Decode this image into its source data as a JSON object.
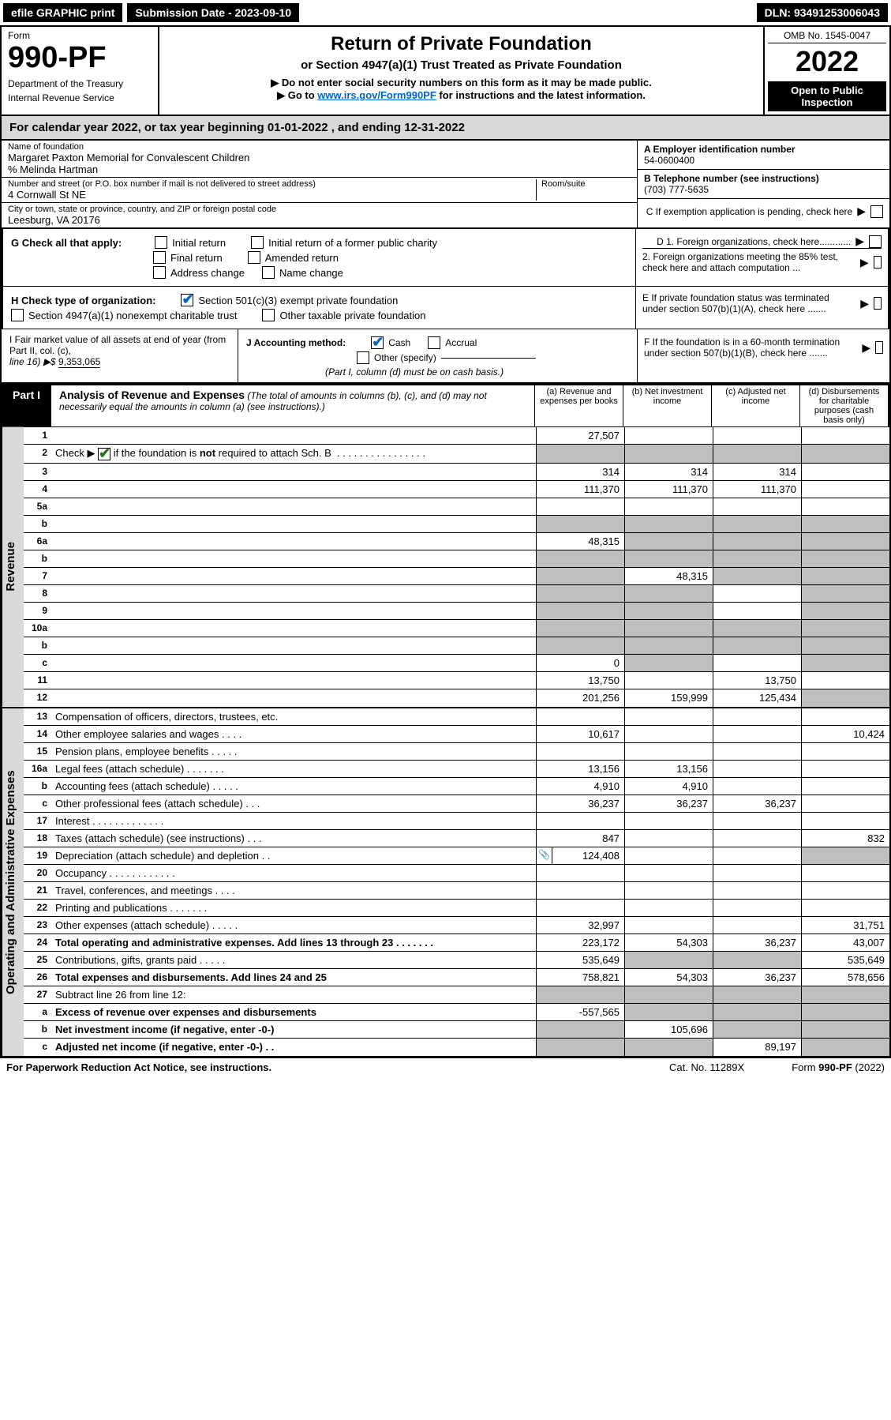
{
  "topbar": {
    "efile": "efile GRAPHIC print",
    "submission_label": "Submission Date - 2023-09-10",
    "dln": "DLN: 93491253006043"
  },
  "header": {
    "form_word": "Form",
    "form_num": "990-PF",
    "dept1": "Department of the Treasury",
    "dept2": "Internal Revenue Service",
    "title": "Return of Private Foundation",
    "subtitle": "or Section 4947(a)(1) Trust Treated as Private Foundation",
    "note1": "▶ Do not enter social security numbers on this form as it may be made public.",
    "note2_pre": "▶ Go to ",
    "note2_link": "www.irs.gov/Form990PF",
    "note2_post": " for instructions and the latest information.",
    "omb": "OMB No. 1545-0047",
    "year": "2022",
    "open": "Open to Public Inspection"
  },
  "cal_year": {
    "pre": "For calendar year 2022, or tax year beginning ",
    "begin": "01-01-2022",
    "mid": " , and ending ",
    "end": "12-31-2022"
  },
  "entity": {
    "name_label": "Name of foundation",
    "name": "Margaret Paxton Memorial for Convalescent Children",
    "care_of": "% Melinda Hartman",
    "addr_label": "Number and street (or P.O. box number if mail is not delivered to street address)",
    "room_label": "Room/suite",
    "addr": "4 Cornwall St NE",
    "city_label": "City or town, state or province, country, and ZIP or foreign postal code",
    "city": "Leesburg, VA  20176",
    "a_label": "A Employer identification number",
    "a_val": "54-0600400",
    "b_label": "B Telephone number (see instructions)",
    "b_val": "(703) 777-5635",
    "c_label": "C If exemption application is pending, check here"
  },
  "g": {
    "label": "G Check all that apply:",
    "initial": "Initial return",
    "initial_former": "Initial return of a former public charity",
    "final": "Final return",
    "amended": "Amended return",
    "addr_change": "Address change",
    "name_change": "Name change"
  },
  "h": {
    "label": "H Check type of organization:",
    "s501": "Section 501(c)(3) exempt private foundation",
    "s4947": "Section 4947(a)(1) nonexempt charitable trust",
    "other_tax": "Other taxable private foundation"
  },
  "d": {
    "d1": "D 1. Foreign organizations, check here............",
    "d2": "2. Foreign organizations meeting the 85% test, check here and attach computation ...",
    "e": "E  If private foundation status was terminated under section 507(b)(1)(A), check here .......",
    "f": "F  If the foundation is in a 60-month termination under section 507(b)(1)(B), check here ......."
  },
  "i": {
    "label": "I Fair market value of all assets at end of year (from Part II, col. (c),",
    "line16": "line 16) ▶$ ",
    "val": "9,353,065"
  },
  "j": {
    "label": "J Accounting method:",
    "cash": "Cash",
    "accrual": "Accrual",
    "other": "Other (specify)",
    "note": "(Part I, column (d) must be on cash basis.)"
  },
  "part1": {
    "tab": "Part I",
    "title": "Analysis of Revenue and Expenses",
    "title_note": " (The total of amounts in columns (b), (c), and (d) may not necessarily equal the amounts in column (a) (see instructions).)",
    "col_a": "(a) Revenue and expenses per books",
    "col_b": "(b) Net investment income",
    "col_c": "(c) Adjusted net income",
    "col_d": "(d) Disbursements for charitable purposes (cash basis only)"
  },
  "side_labels": {
    "revenue": "Revenue",
    "expenses": "Operating and Administrative Expenses"
  },
  "rows": [
    {
      "n": "1",
      "d": "",
      "a": "27,507",
      "b": "",
      "c": "",
      "bg": false,
      "cg": false,
      "dg": false
    },
    {
      "n": "2",
      "d": "",
      "a": "",
      "b": "",
      "c": "",
      "ag": true,
      "bg": true,
      "cg": true,
      "dg": true,
      "chk": true
    },
    {
      "n": "3",
      "d": "",
      "a": "314",
      "b": "314",
      "c": "314"
    },
    {
      "n": "4",
      "d": "",
      "a": "111,370",
      "b": "111,370",
      "c": "111,370"
    },
    {
      "n": "5a",
      "d": "",
      "a": "",
      "b": "",
      "c": ""
    },
    {
      "n": "b",
      "d": "",
      "a": "",
      "b": "",
      "c": "",
      "ag": true,
      "bg": true,
      "cg": true,
      "dg": true,
      "line": true
    },
    {
      "n": "6a",
      "d": "",
      "a": "48,315",
      "b": "",
      "c": "",
      "bg": true,
      "cg": true,
      "dg": true
    },
    {
      "n": "b",
      "d": "",
      "a": "",
      "b": "",
      "c": "",
      "ag": true,
      "bg": true,
      "cg": true,
      "dg": true
    },
    {
      "n": "7",
      "d": "",
      "a": "",
      "b": "48,315",
      "c": "",
      "ag": true,
      "cg": true,
      "dg": true
    },
    {
      "n": "8",
      "d": "",
      "a": "",
      "b": "",
      "c": "",
      "ag": true,
      "bg": true,
      "dg": true
    },
    {
      "n": "9",
      "d": "",
      "a": "",
      "b": "",
      "c": "",
      "ag": true,
      "bg": true,
      "dg": true
    },
    {
      "n": "10a",
      "d": "",
      "a": "",
      "b": "",
      "c": "",
      "ag": true,
      "bg": true,
      "cg": true,
      "dg": true,
      "line": true
    },
    {
      "n": "b",
      "d": "",
      "a": "",
      "b": "",
      "c": "",
      "ag": true,
      "bg": true,
      "cg": true,
      "dg": true,
      "line": true
    },
    {
      "n": "c",
      "d": "",
      "a": "0",
      "b": "",
      "c": "",
      "bg": true,
      "dg": true
    },
    {
      "n": "11",
      "d": "",
      "a": "13,750",
      "b": "",
      "c": "13,750"
    },
    {
      "n": "12",
      "d": "",
      "a": "201,256",
      "b": "159,999",
      "c": "125,434",
      "bold": true,
      "dg": true
    }
  ],
  "exp_rows": [
    {
      "n": "13",
      "d": "Compensation of officers, directors, trustees, etc.",
      "a": "",
      "b": "",
      "c": "",
      "dv": ""
    },
    {
      "n": "14",
      "d": "Other employee salaries and wages  . . . .",
      "a": "10,617",
      "b": "",
      "c": "",
      "dv": "10,424"
    },
    {
      "n": "15",
      "d": "Pension plans, employee benefits  . . . . .",
      "a": "",
      "b": "",
      "c": "",
      "dv": ""
    },
    {
      "n": "16a",
      "d": "Legal fees (attach schedule)  . . . . . . .",
      "a": "13,156",
      "b": "13,156",
      "c": "",
      "dv": ""
    },
    {
      "n": "b",
      "d": "Accounting fees (attach schedule)  . . . . .",
      "a": "4,910",
      "b": "4,910",
      "c": "",
      "dv": ""
    },
    {
      "n": "c",
      "d": "Other professional fees (attach schedule)  . . .",
      "a": "36,237",
      "b": "36,237",
      "c": "36,237",
      "dv": ""
    },
    {
      "n": "17",
      "d": "Interest  . . . . . . . . . . . . .",
      "a": "",
      "b": "",
      "c": "",
      "dv": ""
    },
    {
      "n": "18",
      "d": "Taxes (attach schedule) (see instructions)  . . .",
      "a": "847",
      "b": "",
      "c": "",
      "dv": "832"
    },
    {
      "n": "19",
      "d": "Depreciation (attach schedule) and depletion  . .",
      "a": "124,408",
      "b": "",
      "c": "",
      "dv": "",
      "icon": true,
      "dg": true
    },
    {
      "n": "20",
      "d": "Occupancy  . . . . . . . . . . . .",
      "a": "",
      "b": "",
      "c": "",
      "dv": ""
    },
    {
      "n": "21",
      "d": "Travel, conferences, and meetings  . . . .",
      "a": "",
      "b": "",
      "c": "",
      "dv": ""
    },
    {
      "n": "22",
      "d": "Printing and publications  . . . . . . .",
      "a": "",
      "b": "",
      "c": "",
      "dv": ""
    },
    {
      "n": "23",
      "d": "Other expenses (attach schedule)  . . . . .",
      "a": "32,997",
      "b": "",
      "c": "",
      "dv": "31,751"
    },
    {
      "n": "24",
      "d": "Total operating and administrative expenses. Add lines 13 through 23  . . . . . . .",
      "a": "223,172",
      "b": "54,303",
      "c": "36,237",
      "dv": "43,007",
      "bold": true
    },
    {
      "n": "25",
      "d": "Contributions, gifts, grants paid  . . . . .",
      "a": "535,649",
      "b": "",
      "c": "",
      "dv": "535,649",
      "bg": true,
      "cg": true
    },
    {
      "n": "26",
      "d": "Total expenses and disbursements. Add lines 24 and 25",
      "a": "758,821",
      "b": "54,303",
      "c": "36,237",
      "dv": "578,656",
      "bold": true
    },
    {
      "n": "27",
      "d": "Subtract line 26 from line 12:",
      "a": "",
      "b": "",
      "c": "",
      "dv": "",
      "ag": true,
      "bg": true,
      "cg": true,
      "dg": true
    },
    {
      "n": "a",
      "d": "Excess of revenue over expenses and disbursements",
      "a": "-557,565",
      "b": "",
      "c": "",
      "dv": "",
      "bold": true,
      "bg": true,
      "cg": true,
      "dg": true
    },
    {
      "n": "b",
      "d": "Net investment income (if negative, enter -0-)",
      "a": "",
      "b": "105,696",
      "c": "",
      "dv": "",
      "bold": true,
      "ag": true,
      "cg": true,
      "dg": true
    },
    {
      "n": "c",
      "d": "Adjusted net income (if negative, enter -0-)  . .",
      "a": "",
      "b": "",
      "c": "89,197",
      "dv": "",
      "bold": true,
      "ag": true,
      "bg": true,
      "dg": true
    }
  ],
  "footer": {
    "left": "For Paperwork Reduction Act Notice, see instructions.",
    "center": "Cat. No. 11289X",
    "right": "Form 990-PF (2022)"
  },
  "colors": {
    "grey_bg": "#d9d9d9",
    "cell_grey": "#bfbfbf",
    "link": "#0066cc",
    "check_green": "#1a7a1a"
  }
}
